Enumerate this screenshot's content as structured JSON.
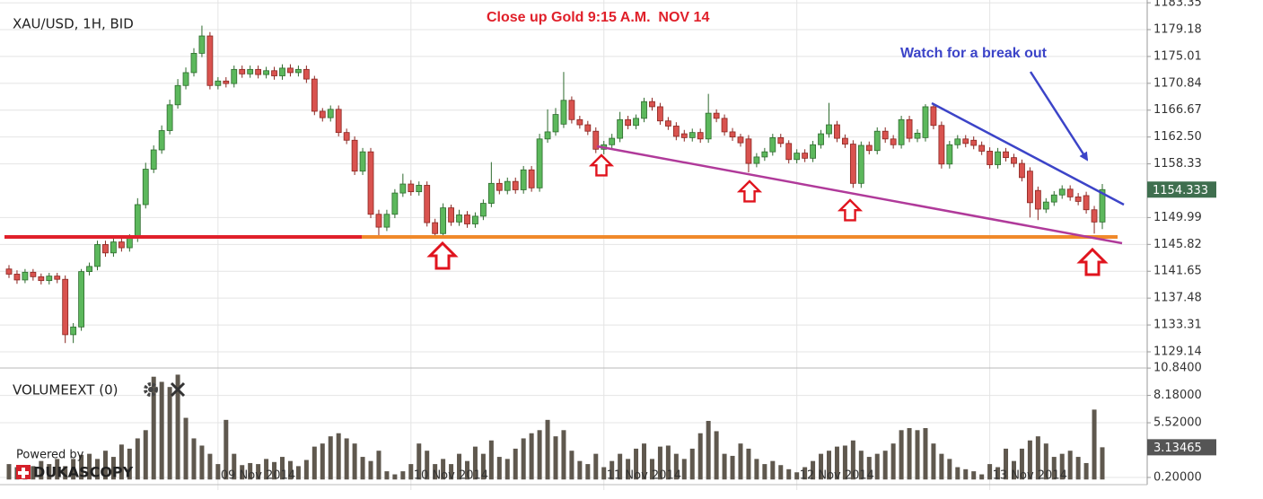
{
  "branding": {
    "powered": "Powered by",
    "brand": "DUKASCOPY"
  },
  "chart_data": [
    {
      "type": "candlestick",
      "title": "XAU/USD, 1H, BID",
      "annotations": [
        "Close up Gold 9:15 A.M.  NOV 14",
        "Watch for a break out"
      ],
      "up_color": "#5cb85c",
      "down_color": "#d9534f",
      "grid": true,
      "ylim": [
        1126.63,
        1183.78
      ],
      "yticks": [
        1183.35,
        1179.18,
        1175.01,
        1170.84,
        1166.67,
        {
          "value": 1162.5,
          "label": "1162.50"
        },
        1158.33,
        1149.99,
        1145.82,
        1141.65,
        1137.48,
        1133.31,
        1129.14
      ],
      "categories": [
        null,
        null,
        null,
        null,
        null,
        null,
        null,
        null,
        null,
        null,
        null,
        null,
        null,
        null,
        null,
        null,
        null,
        null,
        null,
        null,
        null,
        null,
        null,
        null,
        null,
        null,
        "09 Nov 2014",
        null,
        null,
        null,
        null,
        null,
        null,
        null,
        null,
        null,
        null,
        null,
        null,
        null,
        null,
        null,
        null,
        null,
        null,
        null,
        null,
        null,
        null,
        null,
        "10 Nov 2014",
        null,
        null,
        null,
        null,
        null,
        null,
        null,
        null,
        null,
        null,
        null,
        null,
        null,
        null,
        null,
        null,
        null,
        null,
        null,
        null,
        null,
        null,
        null,
        "11 Nov 2014",
        null,
        null,
        null,
        null,
        null,
        null,
        null,
        null,
        null,
        null,
        null,
        null,
        null,
        null,
        null,
        null,
        null,
        null,
        null,
        null,
        null,
        null,
        null,
        "12 Nov 2014",
        null,
        null,
        null,
        null,
        null,
        null,
        null,
        null,
        null,
        null,
        null,
        null,
        null,
        null,
        null,
        null,
        null,
        null,
        null,
        null,
        null,
        null,
        null,
        "13 Nov 2014",
        null,
        null,
        null,
        null,
        null,
        null,
        null,
        null,
        null,
        null,
        null,
        null,
        null,
        null
      ],
      "open": [
        1142.0,
        1141.2,
        1140.3,
        1141.5,
        1140.8,
        1140.2,
        1140.9,
        1140.4,
        1131.8,
        1133.0,
        1141.6,
        1142.4,
        1145.8,
        1144.5,
        1146.2,
        1145.3,
        1146.8,
        1152.0,
        1157.5,
        1160.5,
        1163.5,
        1167.5,
        1170.5,
        1172.5,
        1175.5,
        1178.2,
        1170.5,
        1171.2,
        1170.8,
        1173.0,
        1172.3,
        1173.0,
        1172.2,
        1172.8,
        1172.0,
        1173.2,
        1172.5,
        1173.0,
        1171.5,
        1166.5,
        1165.5,
        1166.8,
        1163.2,
        1162.0,
        1157.2,
        1160.2,
        1150.5,
        1148.5,
        1150.5,
        1153.8,
        1155.2,
        1154.0,
        1155.0,
        1149.2,
        1147.5,
        1151.5,
        1149.3,
        1150.4,
        1149.0,
        1150.2,
        1152.2,
        1155.3,
        1154.2,
        1155.6,
        1154.3,
        1157.4,
        1154.6,
        1162.2,
        1163.3,
        1164.5,
        1168.2,
        1165.2,
        1164.4,
        1163.4,
        1160.6,
        1161.3,
        1162.3,
        1165.2,
        1164.3,
        1165.4,
        1168.0,
        1167.2,
        1165.0,
        1164.2,
        1163.0,
        1162.4,
        1163.2,
        1162.2,
        1166.2,
        1165.4,
        1163.3,
        1162.5,
        1162.2,
        1158.4,
        1159.4,
        1160.2,
        1162.4,
        1161.5,
        1159.0,
        1160.0,
        1159.2,
        1161.3,
        1163.0,
        1164.4,
        1162.3,
        1161.4,
        1155.3,
        1161.2,
        1160.4,
        1163.4,
        1162.2,
        1161.3,
        1165.2,
        1162.3,
        1162.4,
        1167.2,
        1164.3,
        1158.3,
        1161.3,
        1162.2,
        1162.0,
        1161.2,
        1160.3,
        1158.2,
        1160.2,
        1159.3,
        1158.4,
        1157.2,
        1154.2,
        1151.3,
        1152.4,
        1153.5,
        1154.4,
        1153.2,
        1153.4,
        1151.2,
        1149.3
      ],
      "high": [
        1142.6,
        1141.8,
        1142.0,
        1142.0,
        1141.3,
        1141.4,
        1141.4,
        1141.0,
        1133.6,
        1142.0,
        1143.0,
        1146.4,
        1146.4,
        1146.8,
        1146.8,
        1147.4,
        1153.0,
        1158.5,
        1161.2,
        1164.3,
        1168.3,
        1171.5,
        1173.3,
        1176.3,
        1179.8,
        1178.8,
        1171.8,
        1171.8,
        1173.6,
        1173.6,
        1173.6,
        1173.6,
        1173.4,
        1173.4,
        1173.8,
        1173.8,
        1173.6,
        1173.6,
        1172.0,
        1167.0,
        1167.4,
        1167.4,
        1163.8,
        1162.6,
        1160.8,
        1160.8,
        1151.2,
        1151.2,
        1154.4,
        1156.8,
        1155.8,
        1155.6,
        1155.6,
        1149.8,
        1152.2,
        1152.0,
        1151.2,
        1151.0,
        1150.8,
        1152.8,
        1158.6,
        1156.0,
        1156.2,
        1156.2,
        1158.0,
        1158.0,
        1163.0,
        1166.8,
        1167.0,
        1172.6,
        1168.8,
        1165.8,
        1165.0,
        1164.0,
        1161.9,
        1163.0,
        1166.4,
        1165.8,
        1166.0,
        1168.6,
        1168.6,
        1167.8,
        1165.6,
        1164.8,
        1163.6,
        1163.8,
        1163.8,
        1169.2,
        1166.8,
        1166.0,
        1163.9,
        1163.0,
        1162.8,
        1160.0,
        1160.8,
        1163.0,
        1163.0,
        1162.0,
        1160.6,
        1160.6,
        1161.9,
        1163.6,
        1167.8,
        1165.0,
        1162.9,
        1162.0,
        1161.8,
        1161.8,
        1164.0,
        1164.0,
        1162.8,
        1165.8,
        1165.8,
        1163.7,
        1167.6,
        1167.6,
        1164.9,
        1161.9,
        1162.8,
        1162.8,
        1162.6,
        1161.8,
        1160.9,
        1160.8,
        1160.8,
        1159.9,
        1159.0,
        1157.8,
        1154.8,
        1153.0,
        1154.1,
        1155.0,
        1155.0,
        1153.8,
        1154.0,
        1151.8,
        1155.2
      ],
      "low": [
        1140.6,
        1139.7,
        1139.8,
        1140.2,
        1139.6,
        1139.6,
        1139.8,
        1130.5,
        1130.5,
        1132.4,
        1141.0,
        1141.8,
        1143.9,
        1143.9,
        1144.7,
        1144.7,
        1146.2,
        1151.4,
        1156.9,
        1159.9,
        1162.9,
        1166.9,
        1169.9,
        1171.9,
        1174.9,
        1169.9,
        1169.9,
        1170.2,
        1170.2,
        1171.7,
        1171.7,
        1171.6,
        1171.6,
        1171.4,
        1171.4,
        1171.9,
        1171.9,
        1170.9,
        1165.9,
        1164.9,
        1164.9,
        1162.6,
        1161.4,
        1156.6,
        1156.6,
        1149.9,
        1146.9,
        1147.9,
        1149.9,
        1153.2,
        1153.4,
        1153.4,
        1148.6,
        1146.8,
        1146.9,
        1148.7,
        1148.7,
        1148.4,
        1148.4,
        1149.6,
        1151.6,
        1153.6,
        1153.6,
        1153.7,
        1153.7,
        1154.0,
        1154.0,
        1161.6,
        1162.7,
        1163.9,
        1164.6,
        1163.8,
        1162.8,
        1160.0,
        1159.8,
        1160.7,
        1161.7,
        1163.7,
        1163.7,
        1164.8,
        1166.6,
        1164.4,
        1163.6,
        1162.0,
        1161.8,
        1161.8,
        1161.6,
        1161.6,
        1164.8,
        1162.7,
        1161.9,
        1161.0,
        1157.0,
        1157.8,
        1158.8,
        1159.6,
        1160.9,
        1158.4,
        1158.4,
        1158.6,
        1158.6,
        1160.7,
        1162.4,
        1161.7,
        1160.8,
        1154.6,
        1154.6,
        1159.8,
        1159.8,
        1161.6,
        1160.7,
        1160.7,
        1161.7,
        1161.7,
        1161.8,
        1163.7,
        1157.6,
        1157.6,
        1160.7,
        1160.9,
        1160.6,
        1159.7,
        1157.6,
        1157.6,
        1158.7,
        1157.8,
        1155.6,
        1150.0,
        1149.6,
        1150.7,
        1151.8,
        1152.9,
        1152.6,
        1151.9,
        1150.6,
        1147.5,
        1148.2
      ],
      "close": [
        1141.2,
        1140.3,
        1141.5,
        1140.8,
        1140.2,
        1140.9,
        1140.4,
        1131.8,
        1133.0,
        1141.6,
        1142.4,
        1145.8,
        1144.5,
        1146.2,
        1145.3,
        1146.8,
        1152.0,
        1157.5,
        1160.5,
        1163.5,
        1167.5,
        1170.5,
        1172.5,
        1175.5,
        1178.2,
        1170.5,
        1171.2,
        1170.8,
        1173.0,
        1172.3,
        1173.0,
        1172.2,
        1172.8,
        1172.0,
        1173.2,
        1172.5,
        1173.0,
        1171.5,
        1166.5,
        1165.5,
        1166.8,
        1163.2,
        1162.0,
        1157.2,
        1160.2,
        1150.5,
        1148.5,
        1150.5,
        1153.8,
        1155.2,
        1154.0,
        1155.0,
        1149.2,
        1147.5,
        1151.5,
        1149.3,
        1150.4,
        1149.0,
        1150.2,
        1152.2,
        1155.3,
        1154.2,
        1155.6,
        1154.3,
        1157.4,
        1154.6,
        1162.2,
        1163.3,
        1166.0,
        1168.2,
        1165.2,
        1164.4,
        1163.4,
        1160.6,
        1161.3,
        1162.3,
        1165.2,
        1164.3,
        1165.4,
        1168.0,
        1167.2,
        1165.0,
        1164.2,
        1162.6,
        1162.4,
        1163.2,
        1162.2,
        1166.2,
        1165.4,
        1163.3,
        1162.5,
        1161.6,
        1158.4,
        1159.4,
        1160.2,
        1162.4,
        1161.5,
        1159.0,
        1160.0,
        1159.2,
        1161.3,
        1163.0,
        1164.4,
        1162.3,
        1161.4,
        1155.3,
        1161.2,
        1160.4,
        1163.4,
        1162.2,
        1161.3,
        1165.2,
        1162.3,
        1163.1,
        1167.2,
        1164.3,
        1158.3,
        1161.3,
        1162.2,
        1161.5,
        1161.2,
        1160.3,
        1158.2,
        1160.2,
        1159.3,
        1158.4,
        1156.2,
        1152.3,
        1151.3,
        1152.4,
        1153.5,
        1154.4,
        1153.2,
        1152.5,
        1151.2,
        1149.3,
        1154.333
      ]
    },
    {
      "type": "bar",
      "title": "VOLUMEEXT (0)",
      "color": "#5f584e",
      "grid": true,
      "ylim": [
        -0.5,
        10.85
      ],
      "yticks": [
        {
          "value": 10.84,
          "label": "10.8400"
        },
        {
          "value": 8.18,
          "label": "8.18000"
        },
        {
          "value": 5.52,
          "label": "5.52000"
        },
        {
          "value": 0.2,
          "label": "0.20000"
        }
      ],
      "values": [
        1.5,
        1.2,
        1.0,
        1.3,
        1.8,
        1.5,
        2.0,
        1.3,
        2.0,
        2.4,
        2.5,
        2.0,
        2.8,
        2.2,
        3.4,
        3.0,
        4.0,
        4.8,
        10.0,
        9.5,
        9.0,
        10.2,
        6.0,
        4.0,
        3.3,
        2.5,
        1.5,
        5.8,
        2.5,
        1.4,
        1.6,
        1.5,
        2.0,
        1.7,
        2.2,
        1.8,
        1.3,
        1.9,
        3.2,
        3.5,
        4.2,
        4.5,
        4.0,
        3.5,
        2.2,
        1.8,
        2.8,
        0.8,
        0.5,
        0.8,
        1.5,
        3.5,
        2.8,
        1.5,
        2.0,
        1.5,
        2.5,
        1.8,
        3.2,
        2.5,
        3.8,
        2.2,
        2.0,
        3.0,
        4.0,
        4.5,
        4.8,
        5.8,
        4.2,
        4.8,
        2.8,
        1.8,
        1.5,
        2.5,
        1.2,
        1.8,
        2.5,
        2.0,
        3.0,
        3.5,
        2.0,
        3.2,
        3.3,
        2.5,
        2.0,
        3.0,
        4.5,
        5.7,
        4.7,
        2.5,
        2.3,
        3.5,
        3.0,
        2.0,
        1.5,
        1.8,
        1.4,
        1.0,
        0.7,
        1.2,
        1.8,
        2.5,
        2.8,
        3.2,
        3.3,
        3.8,
        2.8,
        2.2,
        2.5,
        2.8,
        3.5,
        4.8,
        5.0,
        4.8,
        5.0,
        3.5,
        2.5,
        2.0,
        1.2,
        1.0,
        0.8,
        0.5,
        1.5,
        1.2,
        3.0,
        1.8,
        3.0,
        3.8,
        4.2,
        3.5,
        2.2,
        2.5,
        2.8,
        2.2,
        1.6,
        6.8,
        3.13465
      ]
    }
  ]
}
